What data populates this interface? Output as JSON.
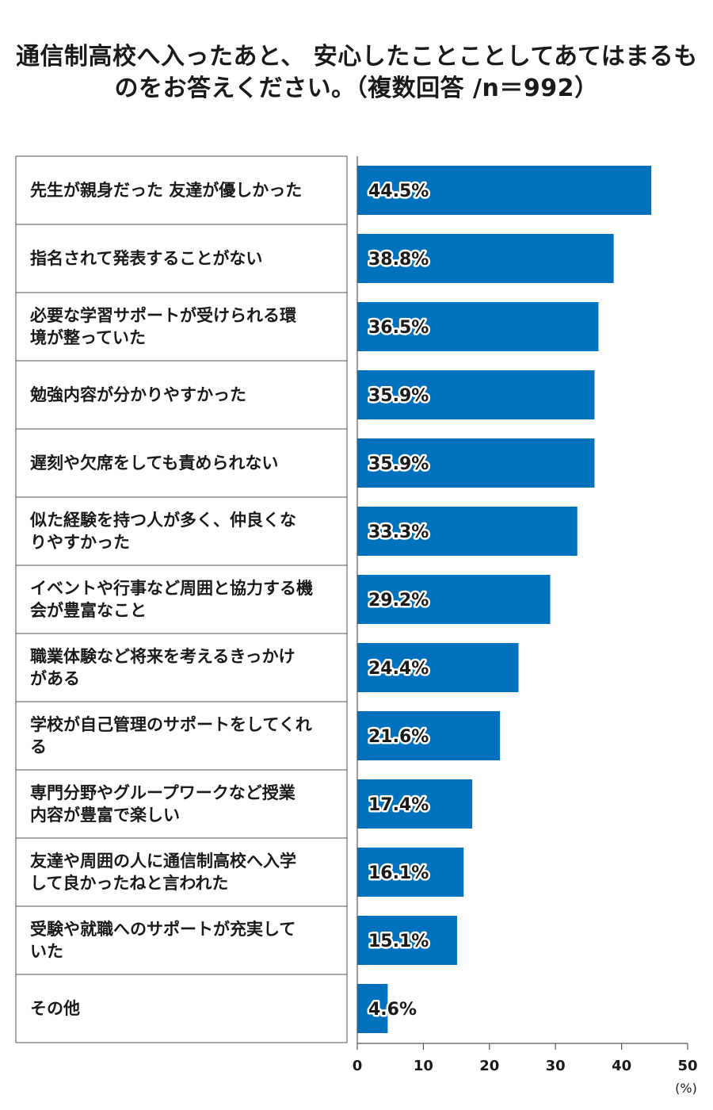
{
  "title": {
    "line1": "通信制高校へ入ったあと、 安心したことことしてあてはまるも",
    "line2": "のをお答えください。（複数回答 /n＝992）"
  },
  "colors": {
    "bar": "#0071bc",
    "grid": "#555555",
    "text": "#1a1a1a"
  },
  "chart_data": {
    "type": "bar",
    "orientation": "horizontal",
    "categories": [
      [
        "先生が親身だった 友達が優しかった"
      ],
      [
        "指名されて発表することがない"
      ],
      [
        "必要な学習サポートが受けられる環",
        "境が整っていた"
      ],
      [
        "勉強内容が分かりやすかった"
      ],
      [
        "遅刻や欠席をしても責められない"
      ],
      [
        "似た経験を持つ人が多く、仲良くな",
        "りやすかった"
      ],
      [
        "イベントや行事など周囲と協力する機",
        "会が豊富なこと"
      ],
      [
        "職業体験など将来を考えるきっかけ",
        "がある"
      ],
      [
        "学校が自己管理のサポートをしてくれ",
        "る"
      ],
      [
        "専門分野やグループワークなど授業",
        "内容が豊富で楽しい"
      ],
      [
        "友達や周囲の人に通信制高校へ入学",
        "して良かったねと言われた"
      ],
      [
        "受験や就職へのサポートが充実して",
        "いた"
      ],
      [
        "その他"
      ]
    ],
    "values": [
      44.5,
      38.8,
      36.5,
      35.9,
      35.9,
      33.3,
      29.2,
      24.4,
      21.6,
      17.4,
      16.1,
      15.1,
      4.6
    ],
    "value_labels": [
      "44.5%",
      "38.8%",
      "36.5%",
      "35.9%",
      "35.9%",
      "33.3%",
      "29.2%",
      "24.4%",
      "21.6%",
      "17.4%",
      "16.1%",
      "15.1%",
      "4.6%"
    ],
    "xlim": [
      0,
      50
    ],
    "xticks": [
      0,
      10,
      20,
      30,
      40,
      50
    ],
    "xunit": "(%)"
  }
}
